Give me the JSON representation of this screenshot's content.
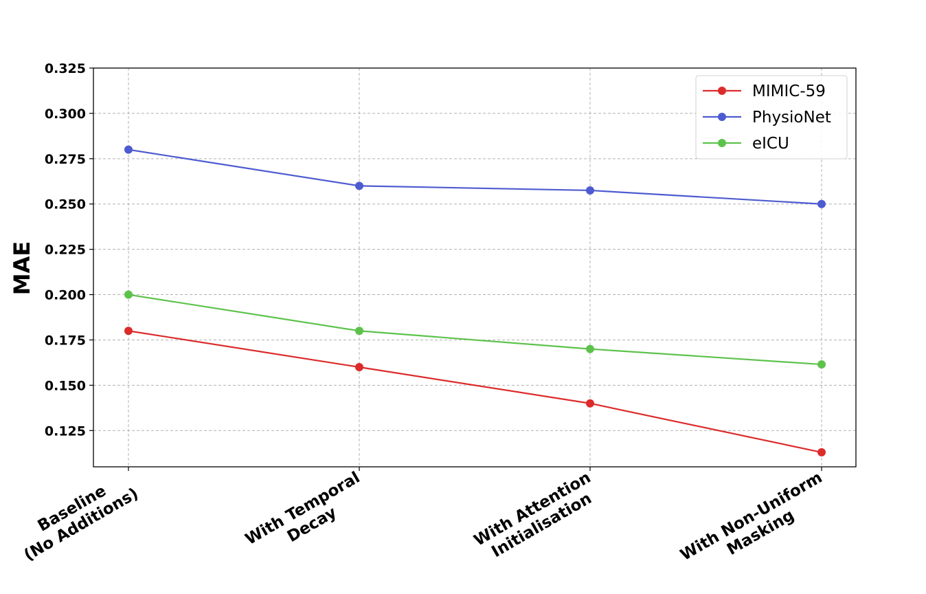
{
  "chart_data": {
    "type": "line",
    "title": "",
    "xlabel": "",
    "ylabel": "MAE",
    "categories": [
      [
        "Baseline",
        "(No Additions)"
      ],
      [
        "With Temporal",
        "Decay"
      ],
      [
        "With Attention",
        "Initialisation"
      ],
      [
        "With Non-Uniform",
        "Masking"
      ]
    ],
    "ylim": [
      0.105,
      0.325
    ],
    "yticks": [
      "0.125",
      "0.150",
      "0.175",
      "0.200",
      "0.225",
      "0.250",
      "0.275",
      "0.300",
      "0.325"
    ],
    "grid": true,
    "legend": "top-right",
    "series": [
      {
        "name": "MIMIC-59",
        "color": "#dc2b2b",
        "values": [
          0.18,
          0.16,
          0.14,
          0.113
        ]
      },
      {
        "name": "PhysioNet",
        "color": "#4d5bd0",
        "values": [
          0.28,
          0.26,
          0.2575,
          0.25
        ]
      },
      {
        "name": "eICU",
        "color": "#5dc24c",
        "values": [
          0.2,
          0.18,
          0.17,
          0.1615
        ]
      }
    ]
  }
}
